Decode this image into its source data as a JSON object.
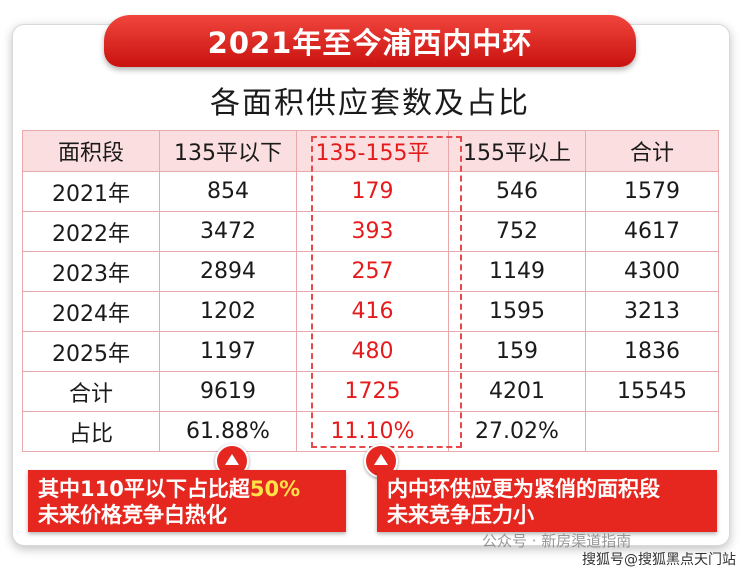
{
  "header": {
    "title": "2021年至今浦西内中环",
    "subtitle": "各面积供应套数及占比"
  },
  "table": {
    "columns": [
      "面积段",
      "135平以下",
      "135-155平",
      "155平以上",
      "合计"
    ],
    "rows": [
      [
        "2021年",
        "854",
        "179",
        "546",
        "1579"
      ],
      [
        "2022年",
        "3472",
        "393",
        "752",
        "4617"
      ],
      [
        "2023年",
        "2894",
        "257",
        "1149",
        "4300"
      ],
      [
        "2024年",
        "1202",
        "416",
        "1595",
        "3213"
      ],
      [
        "2025年",
        "1197",
        "480",
        "159",
        "1836"
      ],
      [
        "合计",
        "9619",
        "1725",
        "4201",
        "15545"
      ],
      [
        "占比",
        "61.88%",
        "11.10%",
        "27.02%",
        ""
      ]
    ],
    "highlight_color": "#e51b1b"
  },
  "notes": {
    "left_pre": "其中110平以下占比超",
    "left_em": "50%",
    "left_line2": "未来价格竞争白热化",
    "right_line1": "内中环供应更为紧俏的面积段",
    "right_line2": "未来竞争压力小"
  },
  "watermark": "公众号 · 新房渠道指南",
  "source": "搜狐号@搜狐黑点天门站",
  "colors": {
    "accent": "#e52720",
    "header_bg": "#fbdfe0",
    "border": "#e8a9ad"
  }
}
